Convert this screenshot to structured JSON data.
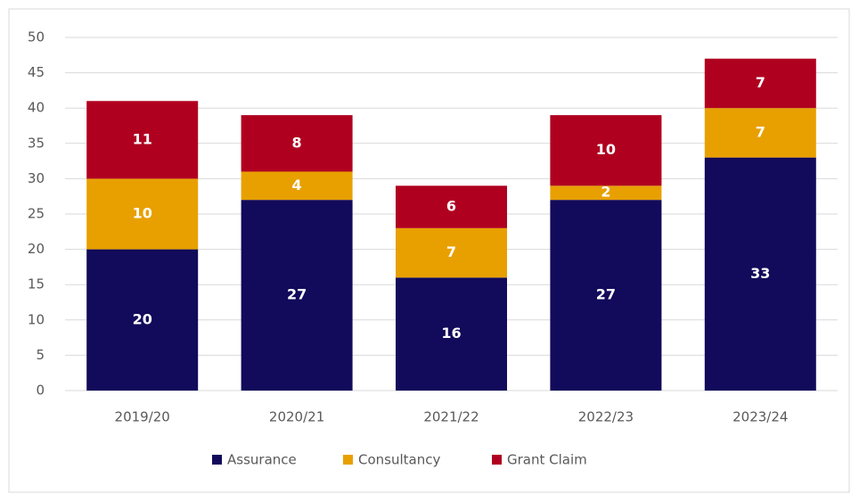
{
  "chart_data": {
    "type": "stacked_bar",
    "categories": [
      "2019/20",
      "2020/21",
      "2021/22",
      "2022/23",
      "2023/24"
    ],
    "series": [
      {
        "name": "Assurance",
        "color": "#120a5a",
        "values": [
          20,
          27,
          16,
          27,
          33
        ]
      },
      {
        "name": "Consultancy",
        "color": "#e8a000",
        "values": [
          10,
          4,
          7,
          2,
          7
        ]
      },
      {
        "name": "Grant Claim",
        "color": "#b00020",
        "values": [
          11,
          8,
          6,
          10,
          7
        ]
      }
    ],
    "ylim": [
      0,
      50
    ],
    "yticks": [
      0,
      5,
      10,
      15,
      20,
      25,
      30,
      35,
      40,
      45,
      50
    ],
    "grid": true,
    "legend": "bottom"
  }
}
